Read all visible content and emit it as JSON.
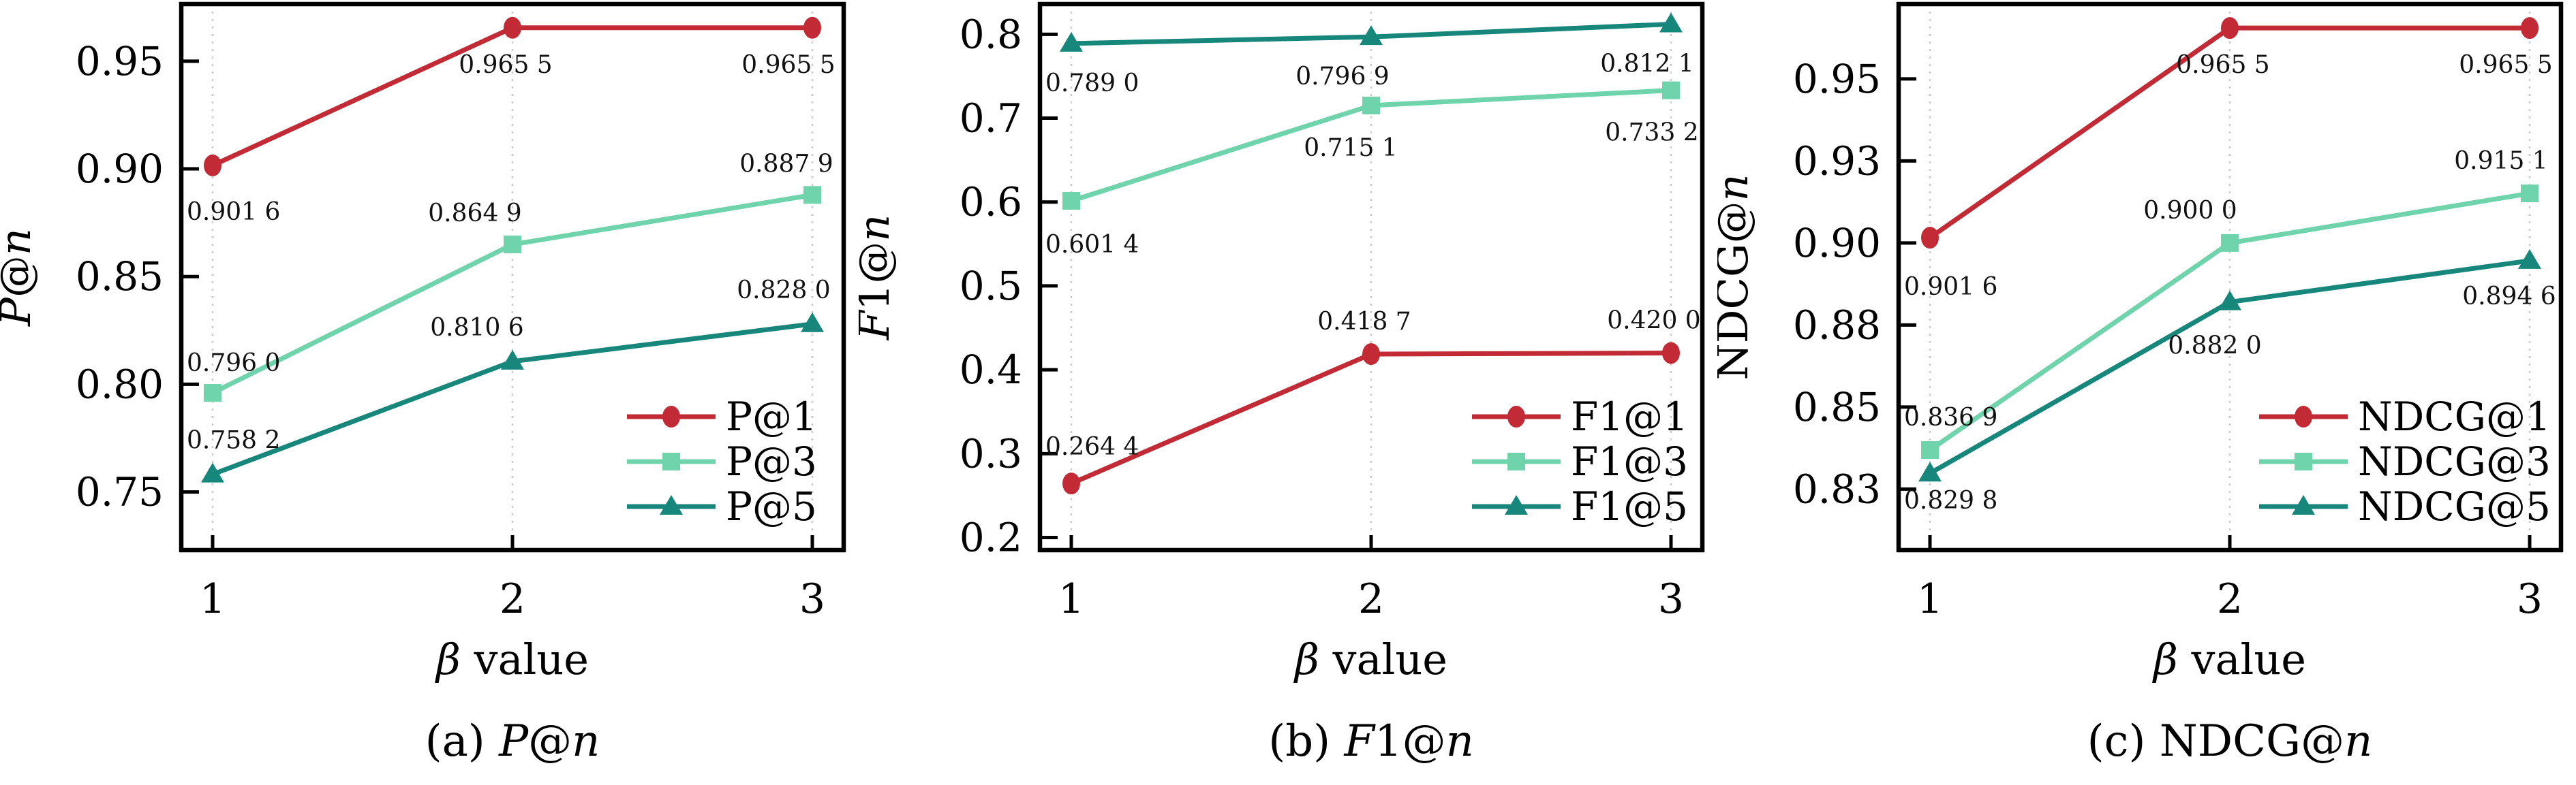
{
  "chart_data": {
    "type": "line",
    "figure_kind": "three-panel line charts, metric vs beta value",
    "xlabel": "β value",
    "xlabel_markup": [
      {
        "text": "β",
        "italic": true
      },
      {
        "text": " value",
        "italic": false
      }
    ],
    "x": [
      1,
      2,
      3
    ],
    "x_tick_labels": [
      "1",
      "2",
      "3"
    ],
    "grid": "vertical dotted gridlines at each x tick",
    "legend_position": "lower right inside plot, no frame",
    "colors": {
      "series_at1": "#C22B35",
      "series_at3": "#6FD3AC",
      "series_at5": "#17867B"
    },
    "charts": [
      {
        "id": "a",
        "ylabel": "P@n",
        "ylabel_markup": [
          {
            "text": "P",
            "italic": true
          },
          {
            "text": "@",
            "italic": false
          },
          {
            "text": "n",
            "italic": true
          }
        ],
        "caption": "(a) P@n",
        "caption_markup": [
          {
            "text": "(a) ",
            "italic": false
          },
          {
            "text": "P",
            "italic": true
          },
          {
            "text": "@",
            "italic": false
          },
          {
            "text": "n",
            "italic": true
          }
        ],
        "ylim": [
          0.723,
          0.9765
        ],
        "yticks": [
          {
            "value": 0.75,
            "label": "0.75"
          },
          {
            "value": 0.8,
            "label": "0.80"
          },
          {
            "value": 0.85,
            "label": "0.85"
          },
          {
            "value": 0.9,
            "label": "0.90"
          },
          {
            "value": 0.95,
            "label": "0.95"
          }
        ],
        "legend_layout": {
          "line_x1": 920,
          "line_x2": 1050,
          "label_x": 1065,
          "rows_y": [
            612,
            678,
            744
          ]
        },
        "series": [
          {
            "name": "P@1",
            "color": "#C22B35",
            "marker": "circle",
            "values": [
              0.9016,
              0.9655,
              0.9655
            ],
            "point_labels": [
              "0.901 6",
              "0.965 5",
              "0.965 5"
            ],
            "label_offsets": [
              [
                -38,
                80,
                "start"
              ],
              [
                -10,
                66,
                "middle"
              ],
              [
                -35,
                66,
                "middle"
              ]
            ]
          },
          {
            "name": "P@3",
            "color": "#6FD3AC",
            "marker": "square",
            "values": [
              0.796,
              0.8649,
              0.8879
            ],
            "point_labels": [
              "0.796 0",
              "0.864 9",
              "0.887 9"
            ],
            "label_offsets": [
              [
                -38,
                -32,
                "start"
              ],
              [
                -55,
                -34,
                "middle"
              ],
              [
                -38,
                -34,
                "middle"
              ]
            ]
          },
          {
            "name": "P@5",
            "color": "#17867B",
            "marker": "triangle",
            "values": [
              0.7582,
              0.8106,
              0.828
            ],
            "point_labels": [
              "0.758 2",
              "0.810 6",
              "0.828 0"
            ],
            "label_offsets": [
              [
                -38,
                -38,
                "start"
              ],
              [
                -52,
                -38,
                "middle"
              ],
              [
                -42,
                -38,
                "middle"
              ]
            ]
          }
        ]
      },
      {
        "id": "b",
        "ylabel": "F1@n",
        "ylabel_markup": [
          {
            "text": "F",
            "italic": true
          },
          {
            "text": "1@",
            "italic": false
          },
          {
            "text": "n",
            "italic": true
          }
        ],
        "caption": "(b) F1@n",
        "caption_markup": [
          {
            "text": "(b) ",
            "italic": false
          },
          {
            "text": "F",
            "italic": true
          },
          {
            "text": "1@",
            "italic": false
          },
          {
            "text": "n",
            "italic": true
          }
        ],
        "ylim": [
          0.185,
          0.836
        ],
        "yticks": [
          {
            "value": 0.2,
            "label": "0.2"
          },
          {
            "value": 0.3,
            "label": "0.3"
          },
          {
            "value": 0.4,
            "label": "0.4"
          },
          {
            "value": 0.5,
            "label": "0.5"
          },
          {
            "value": 0.6,
            "label": "0.6"
          },
          {
            "value": 0.7,
            "label": "0.7"
          },
          {
            "value": 0.8,
            "label": "0.8"
          }
        ],
        "legend_layout": {
          "line_x1": 900,
          "line_x2": 1030,
          "label_x": 1045,
          "rows_y": [
            612,
            678,
            744
          ]
        },
        "series": [
          {
            "name": "F1@1",
            "color": "#C22B35",
            "marker": "circle",
            "values": [
              0.2644,
              0.4187,
              0.42
            ],
            "point_labels": [
              "0.264 4",
              "0.418 7",
              "0.420 0"
            ],
            "label_offsets": [
              [
                -38,
                -42,
                "start"
              ],
              [
                -10,
                -36,
                "middle"
              ],
              [
                -25,
                -36,
                "middle"
              ]
            ]
          },
          {
            "name": "F1@3",
            "color": "#6FD3AC",
            "marker": "square",
            "values": [
              0.6014,
              0.7151,
              0.7332
            ],
            "point_labels": [
              "0.601 4",
              "0.715 1",
              "0.733 2"
            ],
            "label_offsets": [
              [
                -38,
                76,
                "start"
              ],
              [
                -30,
                74,
                "middle"
              ],
              [
                -28,
                74,
                "middle"
              ]
            ]
          },
          {
            "name": "F1@5",
            "color": "#17867B",
            "marker": "triangle",
            "values": [
              0.789,
              0.7969,
              0.8121
            ],
            "point_labels": [
              "0.789 0",
              "0.796 9",
              "0.812 1"
            ],
            "label_offsets": [
              [
                -38,
                70,
                "start"
              ],
              [
                -42,
                70,
                "middle"
              ],
              [
                -35,
                70,
                "middle"
              ]
            ]
          }
        ]
      },
      {
        "id": "c",
        "ylabel": "NDCG@n",
        "ylabel_markup": [
          {
            "text": "NDCG@",
            "italic": false
          },
          {
            "text": "n",
            "italic": true
          }
        ],
        "caption": "(c) NDCG@n",
        "caption_markup": [
          {
            "text": "(c) NDCG@",
            "italic": false
          },
          {
            "text": "n",
            "italic": true
          }
        ],
        "ylim": [
          0.8064,
          0.9728
        ],
        "yticks": [
          {
            "value": 0.825,
            "label": "0.83"
          },
          {
            "value": 0.85,
            "label": "0.85"
          },
          {
            "value": 0.875,
            "label": "0.88"
          },
          {
            "value": 0.9,
            "label": "0.90"
          },
          {
            "value": 0.925,
            "label": "0.93"
          },
          {
            "value": 0.95,
            "label": "0.95"
          }
        ],
        "legend_layout": {
          "line_x1": 795,
          "line_x2": 925,
          "label_x": 940,
          "rows_y": [
            612,
            678,
            744
          ]
        },
        "series": [
          {
            "name": "NDCG@1",
            "color": "#C22B35",
            "marker": "circle",
            "values": [
              0.9016,
              0.9655,
              0.9655
            ],
            "point_labels": [
              "0.901 6",
              "0.965 5",
              "0.965 5"
            ],
            "label_offsets": [
              [
                -38,
                84,
                "start"
              ],
              [
                -10,
                66,
                "middle"
              ],
              [
                -35,
                66,
                "middle"
              ]
            ]
          },
          {
            "name": "NDCG@3",
            "color": "#6FD3AC",
            "marker": "square",
            "values": [
              0.8369,
              0.9,
              0.9151
            ],
            "point_labels": [
              "0.836 9",
              "0.900 0",
              "0.915 1"
            ],
            "label_offsets": [
              [
                -38,
                -36,
                "start"
              ],
              [
                -58,
                -36,
                "middle"
              ],
              [
                -42,
                -36,
                "middle"
              ]
            ]
          },
          {
            "name": "NDCG@5",
            "color": "#17867B",
            "marker": "triangle",
            "values": [
              0.8298,
              0.882,
              0.8946
            ],
            "point_labels": [
              "0.829 8",
              "0.882 0",
              "0.894 6"
            ],
            "label_offsets": [
              [
                -38,
                52,
                "start"
              ],
              [
                -22,
                76,
                "middle"
              ],
              [
                -30,
                64,
                "middle"
              ]
            ]
          }
        ]
      }
    ]
  },
  "style": {
    "frame_color": "#000000",
    "grid_color": "#cbcbcb",
    "text_color": "#000000",
    "background": "#ffffff"
  }
}
